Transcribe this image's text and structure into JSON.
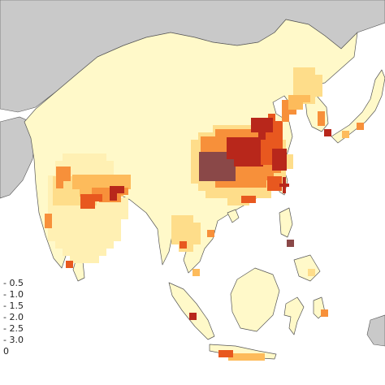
{
  "colors": {
    "ocean": "#ffffff",
    "outside_land": "#c9c9c9",
    "border": "#555555",
    "class_0": "#fff9c9",
    "class_1": "#fff0b3",
    "class_2": "#fedd8a",
    "class_3": "#fdbb5b",
    "class_4": "#f7903a",
    "class_5": "#e8581f",
    "class_6": "#b8271b",
    "class_7": "#8a4848"
  },
  "legend": {
    "labels": [
      "- 0.5",
      "- 1.0",
      "- 1.5",
      "- 2.0",
      "- 2.5",
      "- 3.0",
      "0"
    ],
    "classes": [
      1,
      2,
      3,
      4,
      5,
      6,
      0
    ]
  }
}
